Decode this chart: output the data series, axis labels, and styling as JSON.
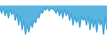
{
  "values": [
    -500,
    -1500,
    -300,
    -2000,
    -800,
    -2500,
    -600,
    -1800,
    -1000,
    -3000,
    -1500,
    -4000,
    -2000,
    -5000,
    -3000,
    -6000,
    -4000,
    -5500,
    -3500,
    -4500,
    -3000,
    -3500,
    -2000,
    -2500,
    -1000,
    -1500,
    -500,
    -800,
    -200,
    -1000,
    -400,
    -600,
    -800,
    -1500,
    -600,
    -2000,
    -800,
    -2500,
    -600,
    -2000,
    -1000,
    -3000,
    -1500,
    -4000,
    -2000,
    -3500,
    -2500,
    -4500,
    -2000,
    -3000,
    -2500,
    -4000,
    -2000,
    -5000,
    -2500,
    -4500,
    -3000,
    -5500,
    -2500,
    -4000,
    -3000,
    -6000,
    -2000,
    -5000
  ],
  "line_color": "#3a9fd4",
  "fill_color": "#5ab4e0",
  "background_color": "#ffffff",
  "ylim_min": -7000,
  "ylim_max": 1500
}
